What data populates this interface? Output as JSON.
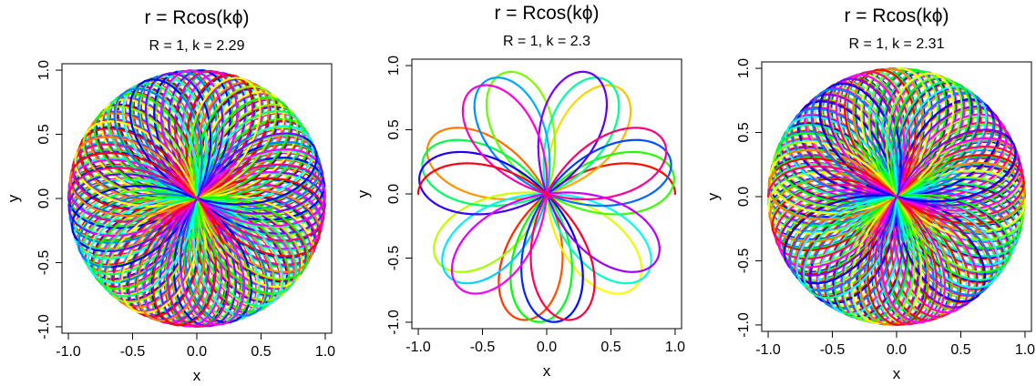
{
  "chart_data": [
    {
      "type": "line",
      "title": "r = Rcos(kϕ)",
      "subtitle": "R = 1, k = 2.29",
      "xlabel": "x",
      "ylabel": "y",
      "xlim": [
        -1.05,
        1.05
      ],
      "ylim": [
        -1.05,
        1.05
      ],
      "xticks": [
        "-1.0",
        "-0.5",
        "0.0",
        "0.5",
        "1.0"
      ],
      "yticks": [
        "-1.0",
        "-0.5",
        "0.0",
        "0.5",
        "1.0"
      ],
      "R": 1,
      "k": 2.29,
      "grid": false,
      "curve": "polar rose r = R*cos(k*phi), colored with a rainbow gradient along the curve"
    },
    {
      "type": "line",
      "title": "r = Rcos(kϕ)",
      "subtitle": "R = 1, k = 2.3",
      "xlabel": "x",
      "ylabel": "y",
      "xlim": [
        -1.05,
        1.05
      ],
      "ylim": [
        -1.05,
        1.05
      ],
      "xticks": [
        "-1.0",
        "-0.5",
        "0.0",
        "0.5",
        "1.0"
      ],
      "yticks": [
        "-1.0",
        "-0.5",
        "0.0",
        "0.5",
        "1.0"
      ],
      "R": 1,
      "k": 2.3,
      "grid": false,
      "curve": "polar rose r = R*cos(k*phi), colored with a rainbow gradient along the curve"
    },
    {
      "type": "line",
      "title": "r = Rcos(kϕ)",
      "subtitle": "R = 1, k = 2.31",
      "xlabel": "x",
      "ylabel": "y",
      "xlim": [
        -1.05,
        1.05
      ],
      "ylim": [
        -1.05,
        1.05
      ],
      "xticks": [
        "-1.0",
        "-0.5",
        "0.0",
        "0.5",
        "1.0"
      ],
      "yticks": [
        "-1.0",
        "-0.5",
        "0.0",
        "0.5",
        "1.0"
      ],
      "R": 1,
      "k": 2.31,
      "grid": false,
      "curve": "polar rose r = R*cos(k*phi), colored with a rainbow gradient along the curve"
    }
  ]
}
